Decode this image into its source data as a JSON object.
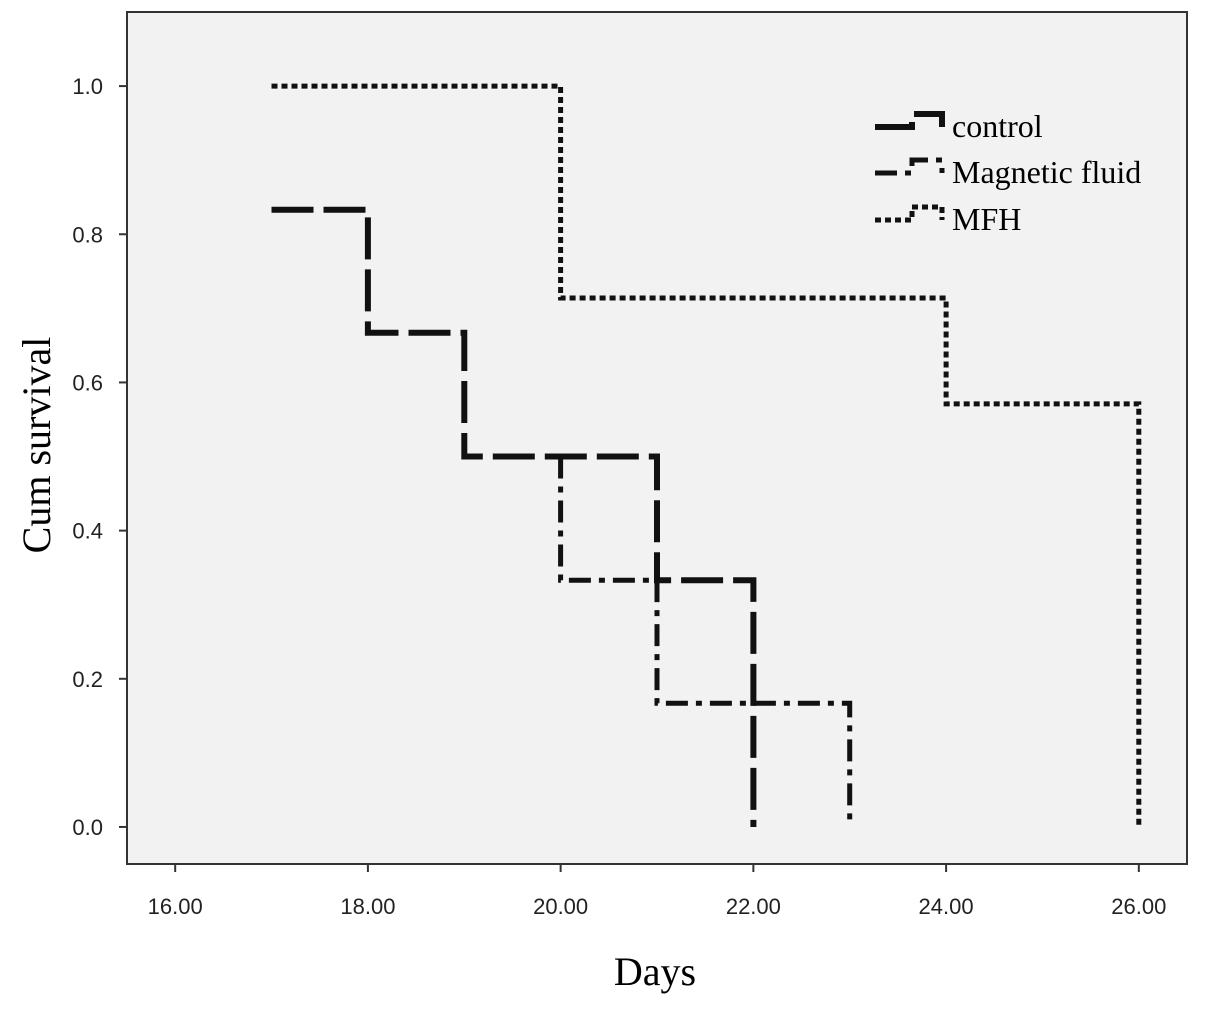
{
  "chart_data": {
    "type": "line",
    "title": "",
    "xlabel": "Days",
    "ylabel": "Cum survival",
    "xlim": [
      15.5,
      26.5
    ],
    "ylim": [
      -0.05,
      1.1
    ],
    "xticks": [
      16,
      18,
      20,
      22,
      24,
      26
    ],
    "xtick_labels": [
      "16.00",
      "18.00",
      "20.00",
      "22.00",
      "24.00",
      "26.00"
    ],
    "yticks": [
      0.0,
      0.2,
      0.4,
      0.6,
      0.8,
      1.0
    ],
    "ytick_labels": [
      "0.0",
      "0.2",
      "0.4",
      "0.6",
      "0.8",
      "1.0"
    ],
    "grid": false,
    "legend_position": "top-right",
    "series": [
      {
        "name": "control",
        "style": "long-dash",
        "color": "#111111",
        "x": [
          17,
          18,
          18,
          19,
          19,
          21,
          21,
          22,
          22
        ],
        "y": [
          0.833,
          0.833,
          0.667,
          0.667,
          0.5,
          0.5,
          0.333,
          0.333,
          0.0
        ]
      },
      {
        "name": "Magnetic fluid",
        "style": "dash-dot",
        "color": "#111111",
        "x": [
          20,
          20,
          21,
          21,
          23,
          23
        ],
        "y": [
          0.5,
          0.333,
          0.333,
          0.167,
          0.167,
          0.0
        ]
      },
      {
        "name": "MFH",
        "style": "dotted",
        "color": "#111111",
        "x": [
          17,
          20,
          20,
          24,
          24,
          26,
          26
        ],
        "y": [
          1.0,
          1.0,
          0.714,
          0.714,
          0.571,
          0.571,
          0.0
        ]
      }
    ]
  }
}
